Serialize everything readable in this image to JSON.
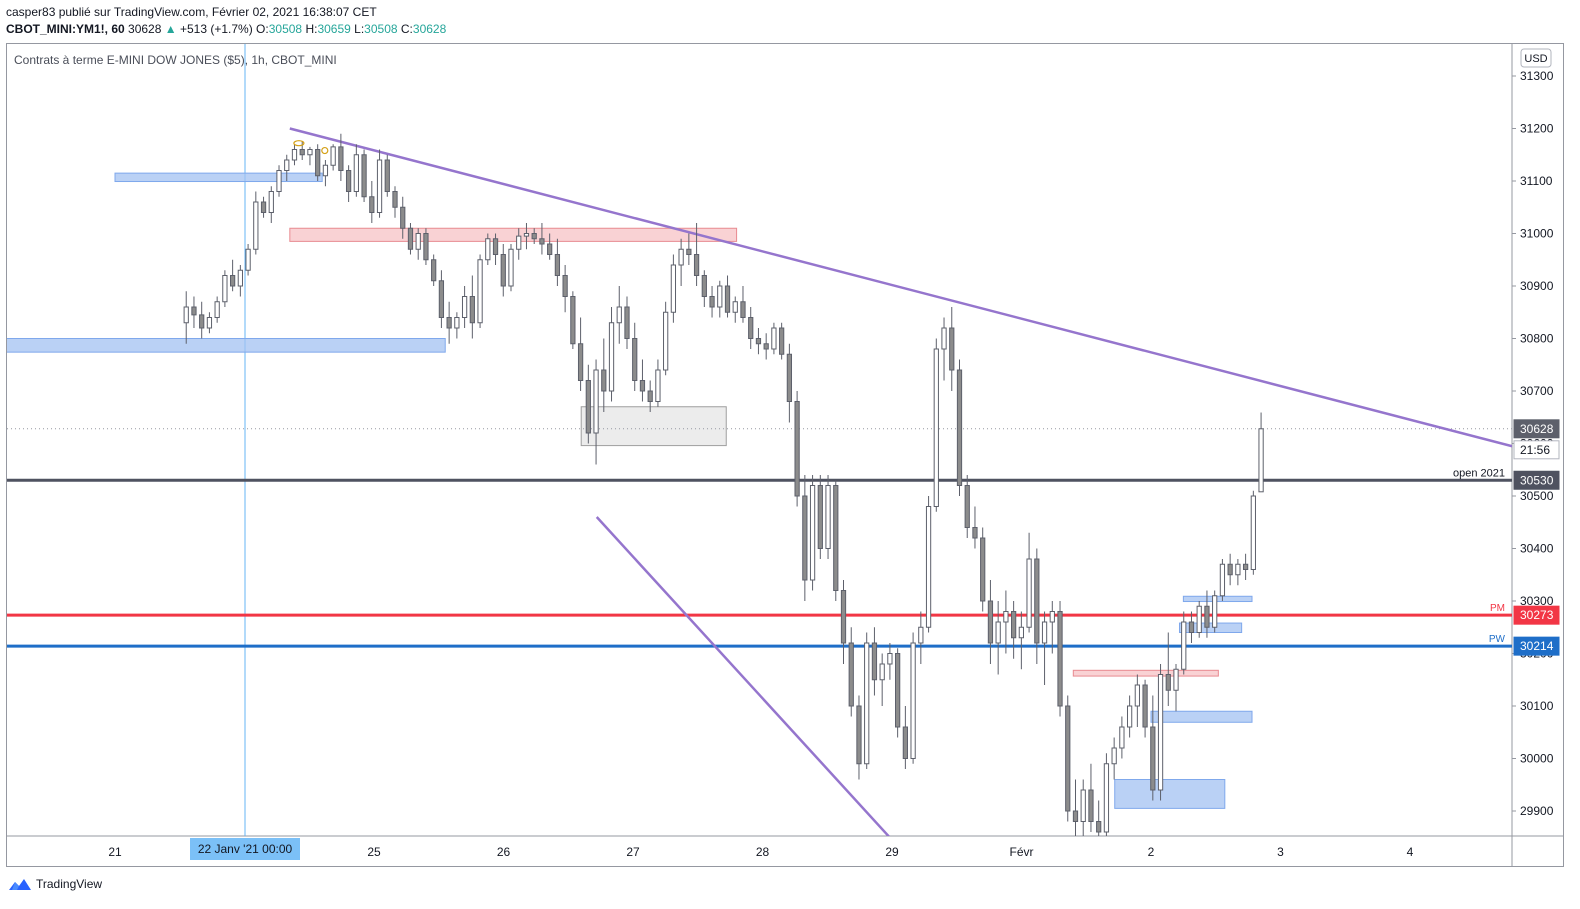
{
  "header": {
    "line1": "casper83 publié sur TradingView.com, Février 02, 2021 16:38:07 CET",
    "symbol": "CBOT_MINI:YM1!, 60",
    "last": "30628",
    "change_arrow": "▲",
    "change": "+513 (+1.7%)",
    "o_label": "O:",
    "o_value": "30508",
    "h_label": "H:",
    "h_value": "30659",
    "l_label": "L:",
    "l_value": "30508",
    "c_label": "C:",
    "c_value": "30628"
  },
  "footer": {
    "brand": "TradingView"
  },
  "colors": {
    "candle_up": "#ffffff",
    "candle_down": "#8c8c8c",
    "candle_border": "#5d606b",
    "trendline": "#9575cd",
    "open_line": "#4f5260",
    "pm_line": "#f23645",
    "pw_line": "#2962ff",
    "pw_line_actual": "#1e6ec8",
    "zone_blue": "#a3c2f2",
    "zone_red": "#f7c3c6",
    "zone_gray": "#e6e6e6",
    "crosshair": "#64b5f6"
  },
  "chart_data": {
    "type": "candlestick",
    "title": "Contrats à terme E-MINI DOW JONES ($5), 1h, CBOT_MINI",
    "currency": "USD",
    "y_axis_side": "right",
    "ylim": [
      29840,
      31380
    ],
    "y_ticks": [
      29900,
      30000,
      30100,
      30200,
      30300,
      30400,
      30500,
      30600,
      30700,
      30800,
      30900,
      31000,
      31100,
      31200,
      31300
    ],
    "x_ticks": [
      "21",
      "25",
      "26",
      "27",
      "28",
      "29",
      "Févr",
      "2",
      "3",
      "4"
    ],
    "x_tick_index": [
      0,
      2,
      3,
      4,
      5,
      6,
      7,
      8,
      9,
      10
    ],
    "session_axis_start": 20.15,
    "session_axis_end": 11.8,
    "crosshair_label": "22 Janv '21   00:00",
    "crosshair_session": 1.0,
    "price_labels": [
      {
        "value": 30628,
        "text": "30628",
        "kind": "last"
      },
      {
        "value": null,
        "text": "21:56",
        "kind": "countdown"
      },
      {
        "value": 30530,
        "text": "30530",
        "kind": "open"
      },
      {
        "value": 30273,
        "text": "30273",
        "kind": "pm"
      },
      {
        "value": 30214,
        "text": "30214",
        "kind": "pw"
      }
    ],
    "horizontal_lines": [
      {
        "name": "open 2021",
        "value": 30530,
        "color": "#4f5260",
        "label": "open 2021"
      },
      {
        "name": "PM",
        "value": 30273,
        "color": "#f23645",
        "label": "PM"
      },
      {
        "name": "PW",
        "value": 30214,
        "color": "#1e6ec8",
        "label": "PW"
      },
      {
        "name": "last",
        "value": 30628,
        "color": "#9598a1",
        "label": ""
      }
    ],
    "trendlines": [
      {
        "name": "descending resistance",
        "x1": 1.35,
        "y1": 31200,
        "x2": 11.8,
        "y2": 30530
      },
      {
        "name": "descending support",
        "x1": 3.72,
        "y1": 30460,
        "x2": 6.0,
        "y2": 29845
      }
    ],
    "zones": [
      {
        "color": "blue",
        "x1": 0.0,
        "x2": 1.6,
        "y1": 31099,
        "y2": 31115
      },
      {
        "color": "blue",
        "x1": -0.85,
        "x2": 2.55,
        "y1": 30774,
        "y2": 30800
      },
      {
        "color": "red",
        "x1": 1.35,
        "x2": 4.8,
        "y1": 30985,
        "y2": 31010
      },
      {
        "color": "gray",
        "x1": 3.6,
        "x2": 4.72,
        "y1": 30596,
        "y2": 30670
      },
      {
        "color": "red",
        "x1": 7.4,
        "x2": 8.52,
        "y1": 30157,
        "y2": 30168
      },
      {
        "color": "blue",
        "x1": 8.25,
        "x2": 8.78,
        "y1": 30299,
        "y2": 30309
      },
      {
        "color": "blue",
        "x1": 8.22,
        "x2": 8.7,
        "y1": 30240,
        "y2": 30258
      },
      {
        "color": "blue",
        "x1": 8.0,
        "x2": 8.78,
        "y1": 30069,
        "y2": 30090
      },
      {
        "color": "blue",
        "x1": 7.72,
        "x2": 8.57,
        "y1": 29905,
        "y2": 29960
      }
    ],
    "markers": [
      {
        "x": 1.42,
        "y": 31172,
        "shape": "ellipse"
      },
      {
        "x": 1.62,
        "y": 31158,
        "shape": "circle"
      }
    ],
    "candles": [
      [
        30830,
        30890,
        30790,
        30860
      ],
      [
        30860,
        30880,
        30820,
        30845
      ],
      [
        30845,
        30870,
        30800,
        30820
      ],
      [
        30820,
        30850,
        30810,
        30840
      ],
      [
        30840,
        30880,
        30830,
        30870
      ],
      [
        30870,
        30930,
        30860,
        30920
      ],
      [
        30920,
        30950,
        30890,
        30900
      ],
      [
        30900,
        30940,
        30880,
        30930
      ],
      [
        30930,
        30980,
        30920,
        30970
      ],
      [
        30970,
        31080,
        30960,
        31060
      ],
      [
        31060,
        31070,
        31030,
        31040
      ],
      [
        31040,
        31090,
        31020,
        31080
      ],
      [
        31080,
        31130,
        31070,
        31120
      ],
      [
        31120,
        31150,
        31100,
        31140
      ],
      [
        31140,
        31170,
        31130,
        31160
      ],
      [
        31160,
        31175,
        31140,
        31150
      ],
      [
        31150,
        31165,
        31130,
        31160
      ],
      [
        31160,
        31170,
        31100,
        31110
      ],
      [
        31110,
        31140,
        31090,
        31130
      ],
      [
        31130,
        31170,
        31120,
        31165
      ],
      [
        31165,
        31190,
        31100,
        31120
      ],
      [
        31120,
        31130,
        31060,
        31080
      ],
      [
        31080,
        31170,
        31070,
        31150
      ],
      [
        31150,
        31160,
        31060,
        31070
      ],
      [
        31070,
        31100,
        31020,
        31040
      ],
      [
        31040,
        31160,
        31030,
        31140
      ],
      [
        31140,
        31150,
        31070,
        31080
      ],
      [
        31080,
        31090,
        31030,
        31050
      ],
      [
        31050,
        31070,
        30990,
        31010
      ],
      [
        31010,
        31020,
        30960,
        30970
      ],
      [
        30970,
        31010,
        30950,
        31000
      ],
      [
        31000,
        31010,
        30940,
        30950
      ],
      [
        30950,
        30960,
        30900,
        30910
      ],
      [
        30910,
        30930,
        30820,
        30840
      ],
      [
        30840,
        30870,
        30790,
        30820
      ],
      [
        30820,
        30850,
        30800,
        30840
      ],
      [
        30840,
        30900,
        30820,
        30880
      ],
      [
        30880,
        30920,
        30800,
        30830
      ],
      [
        30830,
        30960,
        30820,
        30950
      ],
      [
        30950,
        31000,
        30940,
        30990
      ],
      [
        30990,
        31000,
        30940,
        30960
      ],
      [
        30960,
        30980,
        30880,
        30900
      ],
      [
        30900,
        30980,
        30890,
        30970
      ],
      [
        30970,
        31010,
        30950,
        30995
      ],
      [
        30995,
        31020,
        30970,
        31000
      ],
      [
        31000,
        31010,
        30980,
        30990
      ],
      [
        30990,
        31020,
        30960,
        30980
      ],
      [
        30980,
        31000,
        30950,
        30960
      ],
      [
        30960,
        30990,
        30900,
        30920
      ],
      [
        30920,
        30940,
        30850,
        30880
      ],
      [
        30880,
        30890,
        30780,
        30790
      ],
      [
        30790,
        30840,
        30700,
        30720
      ],
      [
        30720,
        30750,
        30600,
        30620
      ],
      [
        30620,
        30760,
        30560,
        30740
      ],
      [
        30740,
        30800,
        30660,
        30700
      ],
      [
        30700,
        30860,
        30680,
        30830
      ],
      [
        30830,
        30900,
        30790,
        30860
      ],
      [
        30860,
        30880,
        30780,
        30800
      ],
      [
        30800,
        30830,
        30700,
        30720
      ],
      [
        30720,
        30760,
        30680,
        30700
      ],
      [
        30700,
        30720,
        30660,
        30680
      ],
      [
        30680,
        30760,
        30670,
        30740
      ],
      [
        30740,
        30870,
        30730,
        30850
      ],
      [
        30850,
        30960,
        30830,
        30940
      ],
      [
        30940,
        30990,
        30900,
        30970
      ],
      [
        30970,
        31000,
        30940,
        30960
      ],
      [
        30960,
        31020,
        30900,
        30920
      ],
      [
        30920,
        30930,
        30860,
        30880
      ],
      [
        30880,
        30900,
        30840,
        30860
      ],
      [
        30860,
        30910,
        30840,
        30900
      ],
      [
        30900,
        30920,
        30840,
        30850
      ],
      [
        30850,
        30880,
        30830,
        30870
      ],
      [
        30870,
        30900,
        30830,
        30840
      ],
      [
        30840,
        30860,
        30780,
        30800
      ],
      [
        30800,
        30820,
        30770,
        30790
      ],
      [
        30790,
        30810,
        30760,
        30780
      ],
      [
        30780,
        30830,
        30770,
        30820
      ],
      [
        30820,
        30830,
        30760,
        30770
      ],
      [
        30770,
        30790,
        30640,
        30680
      ],
      [
        30680,
        30700,
        30480,
        30500
      ],
      [
        30500,
        30540,
        30300,
        30340
      ],
      [
        30340,
        30540,
        30320,
        30520
      ],
      [
        30520,
        30540,
        30380,
        30400
      ],
      [
        30400,
        30540,
        30380,
        30520
      ],
      [
        30520,
        30530,
        30300,
        30320
      ],
      [
        30320,
        30340,
        30180,
        30220
      ],
      [
        30220,
        30250,
        30080,
        30100
      ],
      [
        30100,
        30120,
        29960,
        29990
      ],
      [
        29990,
        30240,
        29980,
        30220
      ],
      [
        30220,
        30250,
        30120,
        30150
      ],
      [
        30150,
        30200,
        30100,
        30180
      ],
      [
        30180,
        30220,
        30150,
        30200
      ],
      [
        30200,
        30210,
        30040,
        30060
      ],
      [
        30060,
        30100,
        29980,
        30000
      ],
      [
        30000,
        30240,
        29990,
        30220
      ],
      [
        30220,
        30280,
        30180,
        30250
      ],
      [
        30250,
        30500,
        30240,
        30480
      ],
      [
        30480,
        30800,
        30470,
        30780
      ],
      [
        30780,
        30840,
        30720,
        30820
      ],
      [
        30820,
        30860,
        30700,
        30740
      ],
      [
        30740,
        30760,
        30500,
        30520
      ],
      [
        30520,
        30540,
        30420,
        30440
      ],
      [
        30440,
        30480,
        30400,
        30420
      ],
      [
        30420,
        30440,
        30280,
        30300
      ],
      [
        30300,
        30340,
        30180,
        30220
      ],
      [
        30220,
        30300,
        30160,
        30260
      ],
      [
        30260,
        30320,
        30200,
        30280
      ],
      [
        30280,
        30300,
        30190,
        30230
      ],
      [
        30230,
        30280,
        30170,
        30250
      ],
      [
        30250,
        30430,
        30240,
        30380
      ],
      [
        30380,
        30400,
        30180,
        30220
      ],
      [
        30220,
        30280,
        30140,
        30260
      ],
      [
        30260,
        30300,
        30200,
        30280
      ],
      [
        30280,
        30300,
        30080,
        30100
      ],
      [
        30100,
        30120,
        29880,
        29900
      ],
      [
        29900,
        29960,
        29840,
        29880
      ],
      [
        29880,
        29960,
        29850,
        29940
      ],
      [
        29940,
        29990,
        29860,
        29880
      ],
      [
        29880,
        29920,
        29840,
        29860
      ],
      [
        29860,
        30010,
        29850,
        29990
      ],
      [
        29990,
        30040,
        29960,
        30020
      ],
      [
        30020,
        30080,
        30000,
        30060
      ],
      [
        30060,
        30120,
        30040,
        30100
      ],
      [
        30100,
        30160,
        30060,
        30140
      ],
      [
        30140,
        30150,
        30040,
        30060
      ],
      [
        30060,
        30120,
        29920,
        29940
      ],
      [
        29940,
        30180,
        29920,
        30160
      ],
      [
        30160,
        30240,
        30100,
        30130
      ],
      [
        30130,
        30180,
        30090,
        30170
      ],
      [
        30170,
        30280,
        30160,
        30260
      ],
      [
        30260,
        30280,
        30220,
        30240
      ],
      [
        30240,
        30300,
        30230,
        30290
      ],
      [
        30290,
        30320,
        30230,
        30250
      ],
      [
        30250,
        30320,
        30240,
        30310
      ],
      [
        30310,
        30380,
        30300,
        30370
      ],
      [
        30370,
        30390,
        30330,
        30350
      ],
      [
        30350,
        30380,
        30330,
        30370
      ],
      [
        30370,
        30390,
        30340,
        30360
      ],
      [
        30360,
        30510,
        30350,
        30500
      ],
      [
        30508,
        30659,
        30508,
        30628
      ]
    ]
  }
}
